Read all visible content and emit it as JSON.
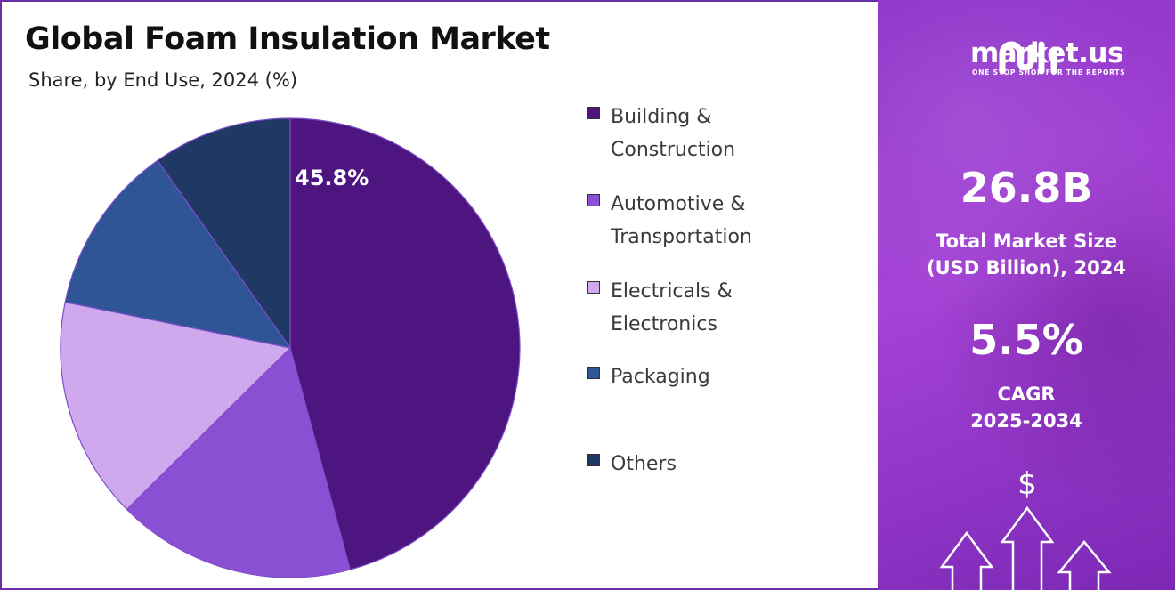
{
  "header": {
    "title": "Global Foam Insulation Market",
    "subtitle": "Share, by End Use, 2024 (%)"
  },
  "chart_data": {
    "type": "pie",
    "title": "Global Foam Insulation Market",
    "subtitle": "Share, by End Use, 2024 (%)",
    "categories": [
      "Building & Construction",
      "Automotive & Transportation",
      "Electricals & Electronics",
      "Packaging",
      "Others"
    ],
    "values": [
      45.8,
      16.8,
      15.6,
      12.0,
      9.8
    ],
    "colors": [
      "#4e1580",
      "#8b4fd3",
      "#cfa8ee",
      "#2f5597",
      "#1f3864"
    ],
    "data_labels": [
      "45.8%",
      "",
      "",
      "",
      ""
    ],
    "legend_position": "right"
  },
  "legend": [
    {
      "label": "Building &\nConstruction",
      "color": "#4e1580"
    },
    {
      "label": "Automotive &\nTransportation",
      "color": "#8b4fd3"
    },
    {
      "label": "Electricals &\nElectronics",
      "color": "#cfa8ee"
    },
    {
      "label": "Packaging",
      "color": "#2f5597"
    },
    {
      "label": "Others",
      "color": "#1f3864"
    }
  ],
  "brand": {
    "name": "market.us",
    "tagline": "ONE STOP SHOP FOR THE REPORTS"
  },
  "stats": {
    "market_size_value": "26.8B",
    "market_size_label": "Total Market Size\n(USD Billion), 2024",
    "cagr_value": "5.5%",
    "cagr_label": "CAGR\n2025-2034"
  },
  "icons": {
    "dollar": "$"
  }
}
